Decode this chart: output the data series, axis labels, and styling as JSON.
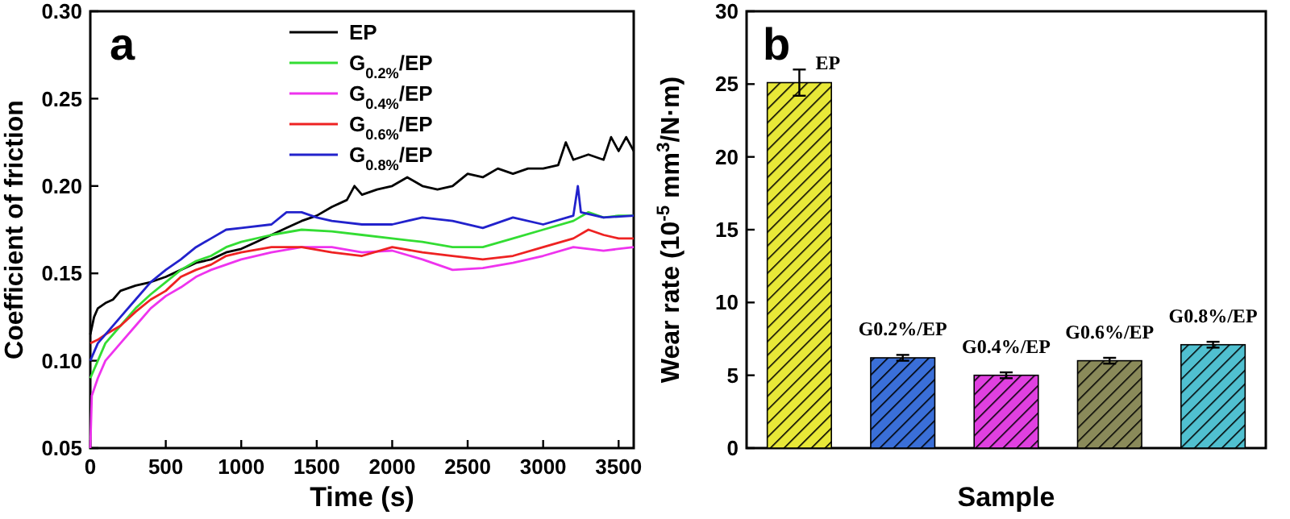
{
  "chart_data": [
    {
      "type": "line",
      "xlabel": "Time (s)",
      "ylabel": "Coefficient of friction",
      "annotations": [
        "a"
      ],
      "xlim": [
        0,
        3600
      ],
      "ylim": [
        0.05,
        0.3
      ],
      "xticks": [
        0,
        500,
        1000,
        1500,
        2000,
        2500,
        3000,
        3500
      ],
      "yticks": [
        0.05,
        {
          "value": 0.1,
          "label": "0.10"
        },
        0.15,
        {
          "value": 0.2,
          "label": "0.20"
        },
        0.25,
        {
          "value": 0.3,
          "label": "0.30"
        }
      ],
      "legend": "top",
      "series": [
        {
          "name": "EP",
          "color": "#000000",
          "x": [
            0,
            25,
            50,
            100,
            150,
            200,
            300,
            400,
            500,
            600,
            700,
            800,
            900,
            1000,
            1100,
            1200,
            1300,
            1400,
            1500,
            1600,
            1700,
            1750,
            1800,
            1900,
            2000,
            2100,
            2200,
            2300,
            2400,
            2500,
            2600,
            2700,
            2800,
            2900,
            3000,
            3100,
            3150,
            3200,
            3300,
            3400,
            3450,
            3500,
            3550,
            3600
          ],
          "values": [
            0.115,
            0.125,
            0.13,
            0.133,
            0.135,
            0.14,
            0.143,
            0.145,
            0.148,
            0.152,
            0.156,
            0.158,
            0.162,
            0.164,
            0.168,
            0.172,
            0.176,
            0.18,
            0.183,
            0.188,
            0.192,
            0.2,
            0.195,
            0.198,
            0.2,
            0.205,
            0.2,
            0.198,
            0.2,
            0.207,
            0.205,
            0.21,
            0.207,
            0.21,
            0.21,
            0.212,
            0.225,
            0.215,
            0.218,
            0.215,
            0.228,
            0.22,
            0.228,
            0.22
          ]
        },
        {
          "name": "G$_{0.2%}$/EP",
          "color": "#33dd33",
          "x": [
            0,
            50,
            100,
            200,
            300,
            400,
            500,
            600,
            700,
            800,
            900,
            1000,
            1200,
            1400,
            1600,
            1800,
            2000,
            2200,
            2400,
            2600,
            2800,
            3000,
            3200,
            3300,
            3400,
            3500,
            3600
          ],
          "values": [
            0.09,
            0.1,
            0.11,
            0.12,
            0.13,
            0.138,
            0.145,
            0.152,
            0.157,
            0.16,
            0.165,
            0.168,
            0.172,
            0.175,
            0.174,
            0.172,
            0.17,
            0.168,
            0.165,
            0.165,
            0.17,
            0.175,
            0.18,
            0.185,
            0.182,
            0.183,
            0.183
          ]
        },
        {
          "name": "G$_{0.4%}$/EP",
          "color": "#ee33ee",
          "x": [
            0,
            10,
            50,
            100,
            200,
            300,
            400,
            500,
            600,
            700,
            800,
            900,
            1000,
            1200,
            1400,
            1600,
            1800,
            2000,
            2200,
            2400,
            2600,
            2800,
            3000,
            3200,
            3400,
            3600
          ],
          "values": [
            0.05,
            0.08,
            0.09,
            0.1,
            0.11,
            0.12,
            0.13,
            0.137,
            0.142,
            0.148,
            0.152,
            0.155,
            0.158,
            0.162,
            0.165,
            0.165,
            0.162,
            0.163,
            0.158,
            0.152,
            0.153,
            0.156,
            0.16,
            0.165,
            0.163,
            0.165
          ]
        },
        {
          "name": "G$_{0.6%}$/EP",
          "color": "#ee2222",
          "x": [
            0,
            50,
            100,
            200,
            300,
            400,
            500,
            600,
            700,
            800,
            900,
            1000,
            1200,
            1400,
            1600,
            1800,
            2000,
            2200,
            2400,
            2600,
            2800,
            3000,
            3200,
            3300,
            3400,
            3500,
            3600
          ],
          "values": [
            0.11,
            0.112,
            0.115,
            0.12,
            0.128,
            0.135,
            0.14,
            0.148,
            0.152,
            0.155,
            0.16,
            0.162,
            0.165,
            0.165,
            0.162,
            0.16,
            0.165,
            0.162,
            0.16,
            0.158,
            0.16,
            0.165,
            0.17,
            0.175,
            0.172,
            0.17,
            0.17
          ]
        },
        {
          "name": "G$_{0.8%}$/EP",
          "color": "#2222cc",
          "x": [
            0,
            50,
            100,
            200,
            300,
            400,
            500,
            600,
            700,
            800,
            900,
            1000,
            1200,
            1300,
            1400,
            1500,
            1600,
            1800,
            2000,
            2200,
            2400,
            2600,
            2800,
            3000,
            3200,
            3230,
            3250,
            3400,
            3600
          ],
          "values": [
            0.1,
            0.11,
            0.115,
            0.125,
            0.135,
            0.145,
            0.152,
            0.158,
            0.165,
            0.17,
            0.175,
            0.176,
            0.178,
            0.185,
            0.185,
            0.182,
            0.18,
            0.178,
            0.178,
            0.182,
            0.18,
            0.176,
            0.182,
            0.178,
            0.183,
            0.2,
            0.185,
            0.182,
            0.183
          ]
        }
      ]
    },
    {
      "type": "bar",
      "xlabel": "Sample",
      "ylabel": "Wear rate (10$^{-5}$ mm$^{3}$/N·m)",
      "annotations": [
        "b"
      ],
      "ylim": [
        0,
        30
      ],
      "yticks": [
        0,
        5,
        10,
        15,
        20,
        25,
        30
      ],
      "categories": [
        "EP",
        "G0.2%/EP",
        "G0.4%/EP",
        "G0.6%/EP",
        "G0.8%/EP"
      ],
      "values": [
        25.1,
        6.2,
        5.0,
        6.0,
        7.1
      ],
      "errors": [
        0.9,
        0.2,
        0.2,
        0.2,
        0.2
      ],
      "colors": [
        "#e8e838",
        "#3a6fd8",
        "#e040e0",
        "#8a8a5a",
        "#50c0d0"
      ]
    }
  ]
}
